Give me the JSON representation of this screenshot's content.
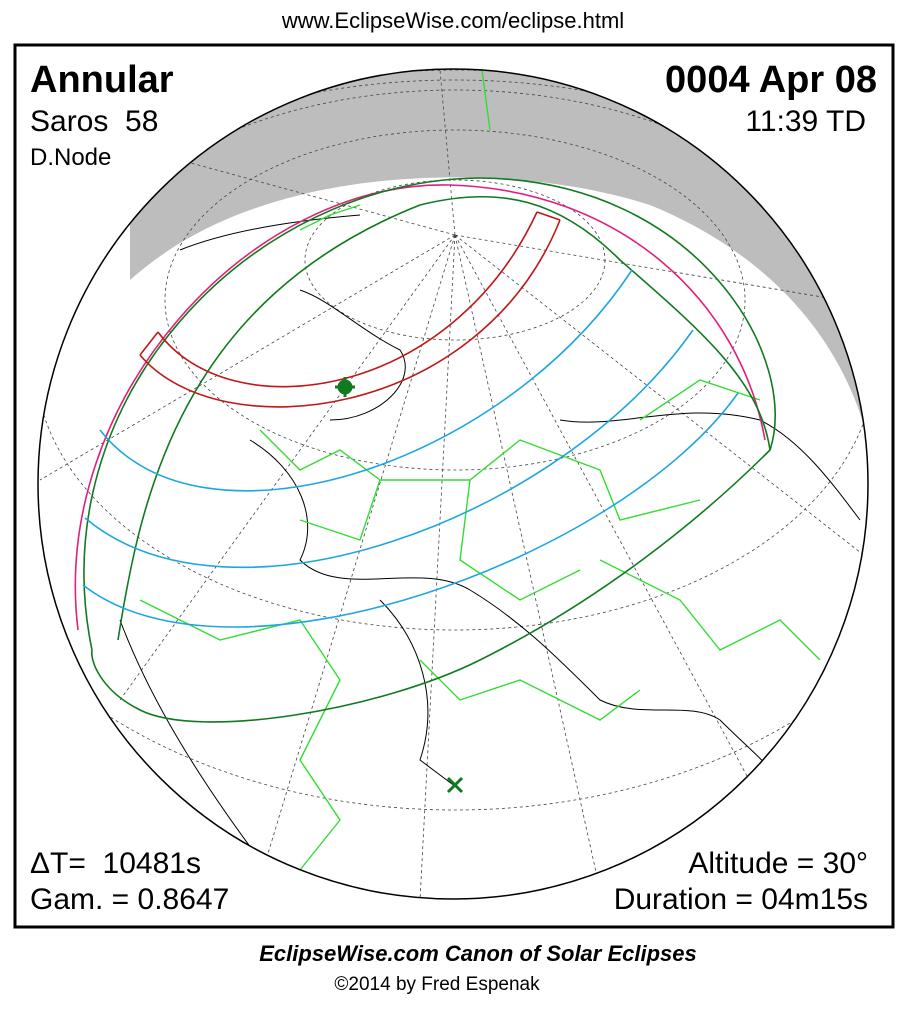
{
  "header": {
    "url": "www.EclipseWise.com/eclipse.html"
  },
  "info": {
    "eclipse_type": "Annular",
    "saros": "Saros  58",
    "node": "D.Node",
    "date": "0004 Apr 08",
    "time": "11:39 TD",
    "delta_t": "ΔT=  10481s",
    "gamma": "Gam. = 0.8647",
    "altitude": "Altitude = 30°",
    "duration": "Duration = 04m15s"
  },
  "footer": {
    "title": "EclipseWise.com Canon of Solar Eclipses",
    "copyright": "©2014 by Fred Espenak"
  }
}
